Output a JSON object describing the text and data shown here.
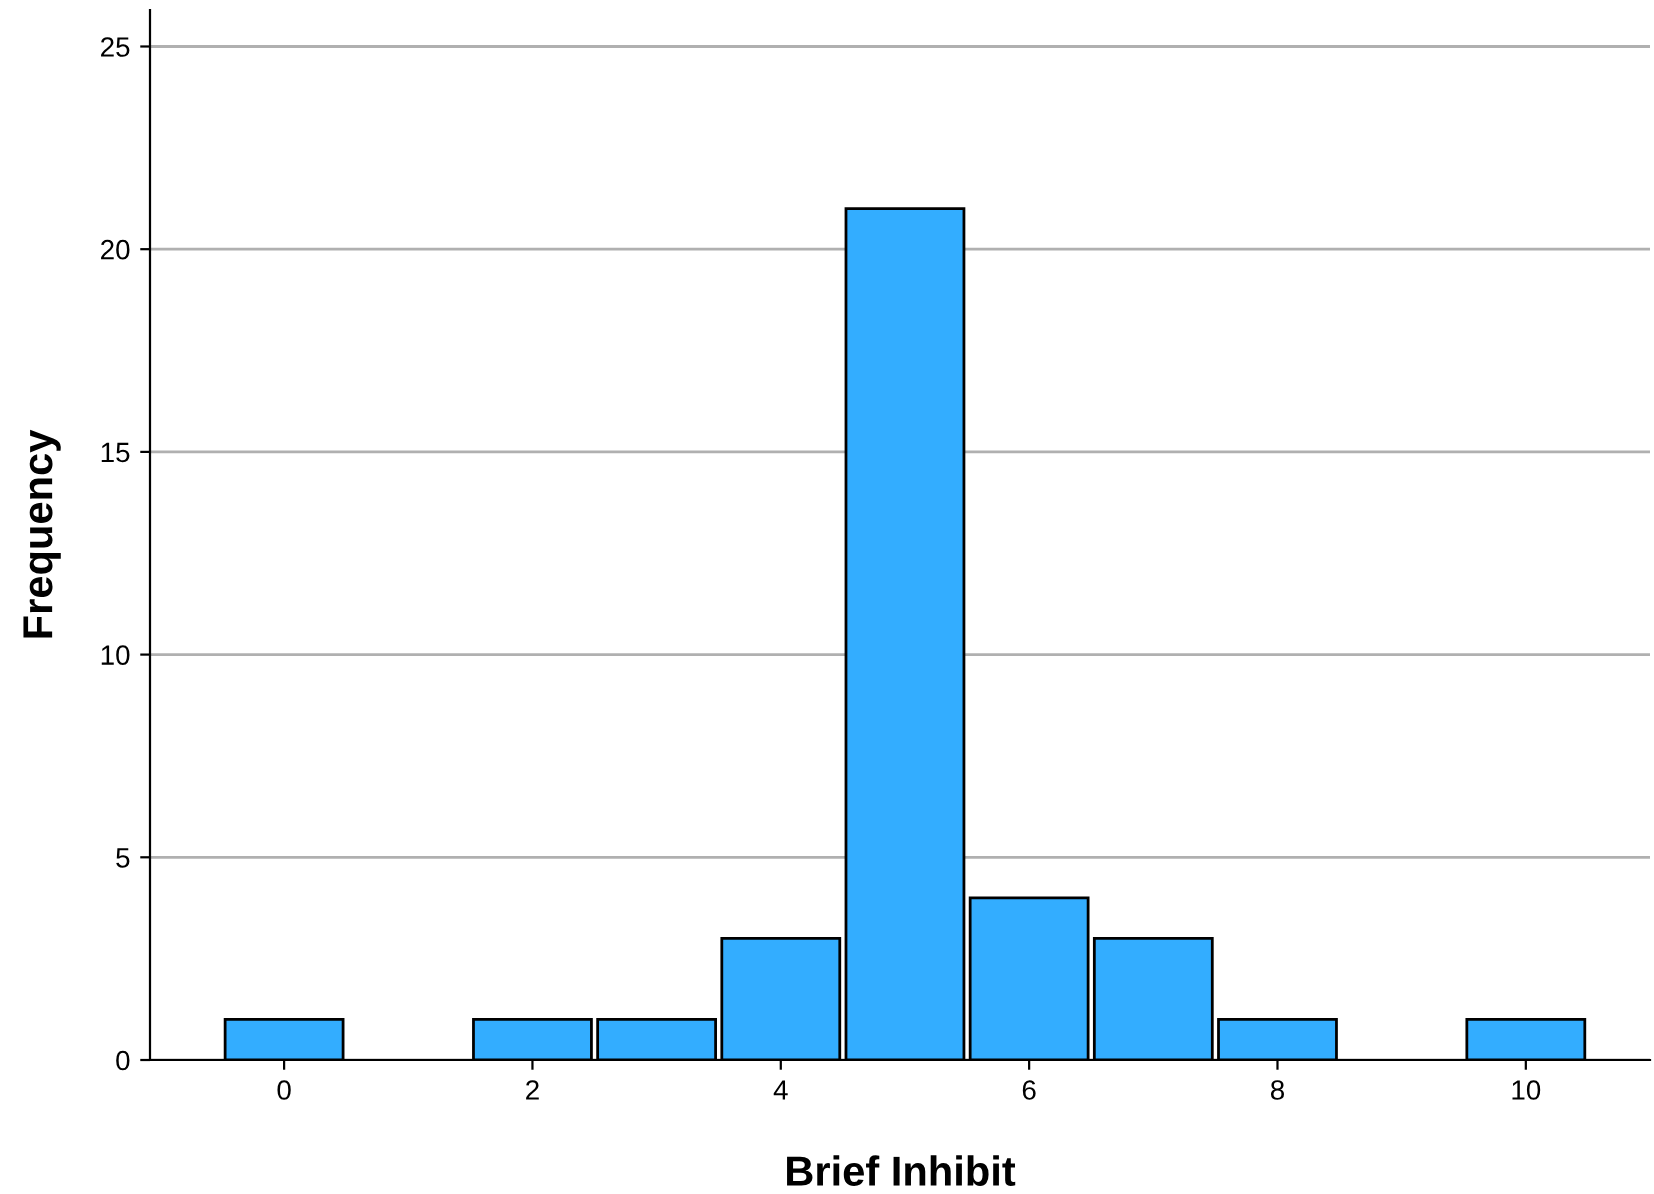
{
  "chart_data": {
    "type": "bar",
    "xlabel": "Brief Inhibit",
    "ylabel": "Frequency",
    "x": [
      0,
      2,
      3,
      4,
      5,
      6,
      7,
      8,
      10
    ],
    "values": [
      1,
      1,
      1,
      3,
      21,
      4,
      3,
      1,
      1
    ],
    "color": "#33adff",
    "xlim": [
      -1.08,
      11.0
    ],
    "xticks": [
      0,
      2,
      4,
      6,
      8,
      10
    ],
    "ylim": [
      0,
      25.9
    ],
    "yticks": [
      0,
      5,
      10,
      15,
      20,
      25
    ],
    "grid": "y"
  }
}
